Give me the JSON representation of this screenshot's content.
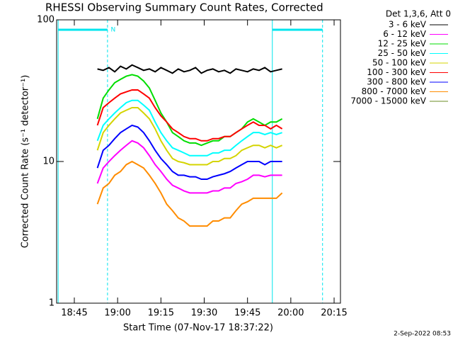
{
  "chart_data": {
    "type": "line",
    "title": "RHESSI Observing Summary Count Rates, Corrected",
    "xlabel": "Start Time (07-Nov-17 18:37:22)",
    "ylabel": "Corrected Count Rate (s⁻¹ detector⁻¹)",
    "legend_title": "Det 1,3,6, Att 0",
    "footer": "2-Sep-2022 08:53",
    "log_y": true,
    "xlim": [
      38.87,
      137.2
    ],
    "xticks": [
      {
        "value": 45,
        "label": "18:45"
      },
      {
        "value": 60,
        "label": "19:00"
      },
      {
        "value": 75,
        "label": "19:15"
      },
      {
        "value": 90,
        "label": "19:30"
      },
      {
        "value": 105,
        "label": "19:45"
      },
      {
        "value": 120,
        "label": "20:00"
      },
      {
        "value": 135,
        "label": "20:15"
      }
    ],
    "ylim": [
      1,
      100
    ],
    "yticks": [
      1,
      10,
      100
    ],
    "night": [
      {
        "start": 39.4,
        "end": 56.5,
        "label": "N"
      },
      {
        "start": 113.6,
        "end": 131.0
      }
    ],
    "x": [
      53,
      55,
      57,
      59,
      61,
      63,
      65,
      67,
      69,
      71,
      73,
      75,
      77,
      79,
      81,
      83,
      85,
      87,
      89,
      91,
      93,
      95,
      97,
      99,
      101,
      103,
      105,
      107,
      109,
      111,
      113,
      115,
      117
    ],
    "series": [
      {
        "name": "3 - 6 keV",
        "color": "#000000",
        "values": [
          45,
          44,
          46,
          43,
          47,
          45,
          48,
          46,
          44,
          45,
          43,
          46,
          44,
          42,
          45,
          43,
          44,
          46,
          42,
          44,
          45,
          43,
          44,
          42,
          45,
          44,
          43,
          45,
          44,
          46,
          43,
          44,
          45
        ]
      },
      {
        "name": "6 - 12 keV",
        "color": "#ff00ff",
        "values": [
          7,
          9,
          10,
          11,
          12,
          13,
          14,
          13.5,
          12.5,
          11,
          9.5,
          8.5,
          7.5,
          6.8,
          6.5,
          6.2,
          6,
          6,
          6,
          6,
          6.2,
          6.2,
          6.5,
          6.5,
          7,
          7.2,
          7.5,
          8,
          8,
          7.8,
          8,
          8,
          8
        ]
      },
      {
        "name": "12 - 25 keV",
        "color": "#00dd00",
        "values": [
          20,
          28,
          32,
          36,
          38,
          40,
          41,
          40,
          37,
          33,
          27,
          22,
          19,
          16,
          15,
          14,
          13.5,
          13.5,
          13,
          13.5,
          14,
          14,
          15,
          15,
          16,
          17,
          19,
          20,
          19,
          18,
          19,
          19,
          20
        ]
      },
      {
        "name": "25 - 50 keV",
        "color": "#00ffff",
        "values": [
          14,
          18,
          20,
          22,
          24,
          26,
          27,
          27,
          25,
          23,
          19,
          16,
          14,
          12.5,
          12,
          11.5,
          11,
          11,
          11,
          11,
          11.5,
          11.5,
          12,
          12,
          13,
          14,
          15,
          16,
          16,
          15.5,
          16,
          15.5,
          16
        ]
      },
      {
        "name": "50 - 100 keV",
        "color": "#d4d400",
        "values": [
          12,
          16,
          18,
          20,
          22,
          23,
          24,
          24,
          22,
          20,
          17,
          14,
          12,
          10.5,
          10,
          9.8,
          9.5,
          9.5,
          9.5,
          9.5,
          10,
          10,
          10.5,
          10.5,
          11,
          12,
          12.5,
          13,
          13,
          12.5,
          13,
          12.5,
          13
        ]
      },
      {
        "name": "100 - 300 keV",
        "color": "#ff0000",
        "values": [
          18,
          24,
          26,
          28,
          30,
          31,
          32,
          32,
          30,
          28,
          24,
          21,
          19,
          17,
          16,
          15,
          14.5,
          14.5,
          14,
          14,
          14.5,
          14.5,
          15,
          15,
          16,
          17,
          18,
          19,
          18,
          18,
          17,
          18,
          17
        ]
      },
      {
        "name": "300 - 800 keV",
        "color": "#0000ff",
        "values": [
          9,
          12,
          13,
          14.5,
          16,
          17,
          18,
          17.5,
          16,
          14,
          12,
          10.5,
          9.5,
          8.5,
          8,
          8,
          7.8,
          7.8,
          7.5,
          7.5,
          7.8,
          8,
          8.2,
          8.5,
          9,
          9.5,
          10,
          10,
          10,
          9.5,
          10,
          10,
          10
        ]
      },
      {
        "name": "800 - 7000 keV",
        "color": "#ff8c00",
        "values": [
          5,
          6.5,
          7,
          8,
          8.5,
          9.5,
          10,
          9.5,
          9,
          8,
          7,
          6,
          5,
          4.5,
          4,
          3.8,
          3.5,
          3.5,
          3.5,
          3.5,
          3.8,
          3.8,
          4,
          4,
          4.5,
          5,
          5.2,
          5.5,
          5.5,
          5.5,
          5.5,
          5.5,
          6
        ]
      },
      {
        "name": "7000 - 15000 keV",
        "color": "#6b8e23",
        "values": [
          null,
          null,
          null,
          null,
          null,
          null,
          null,
          null,
          null,
          null,
          null,
          null,
          null,
          null,
          null,
          null,
          null,
          null,
          null,
          null,
          null,
          null,
          null,
          null,
          null,
          null,
          null,
          null,
          null,
          null,
          null,
          null,
          null
        ]
      }
    ]
  }
}
